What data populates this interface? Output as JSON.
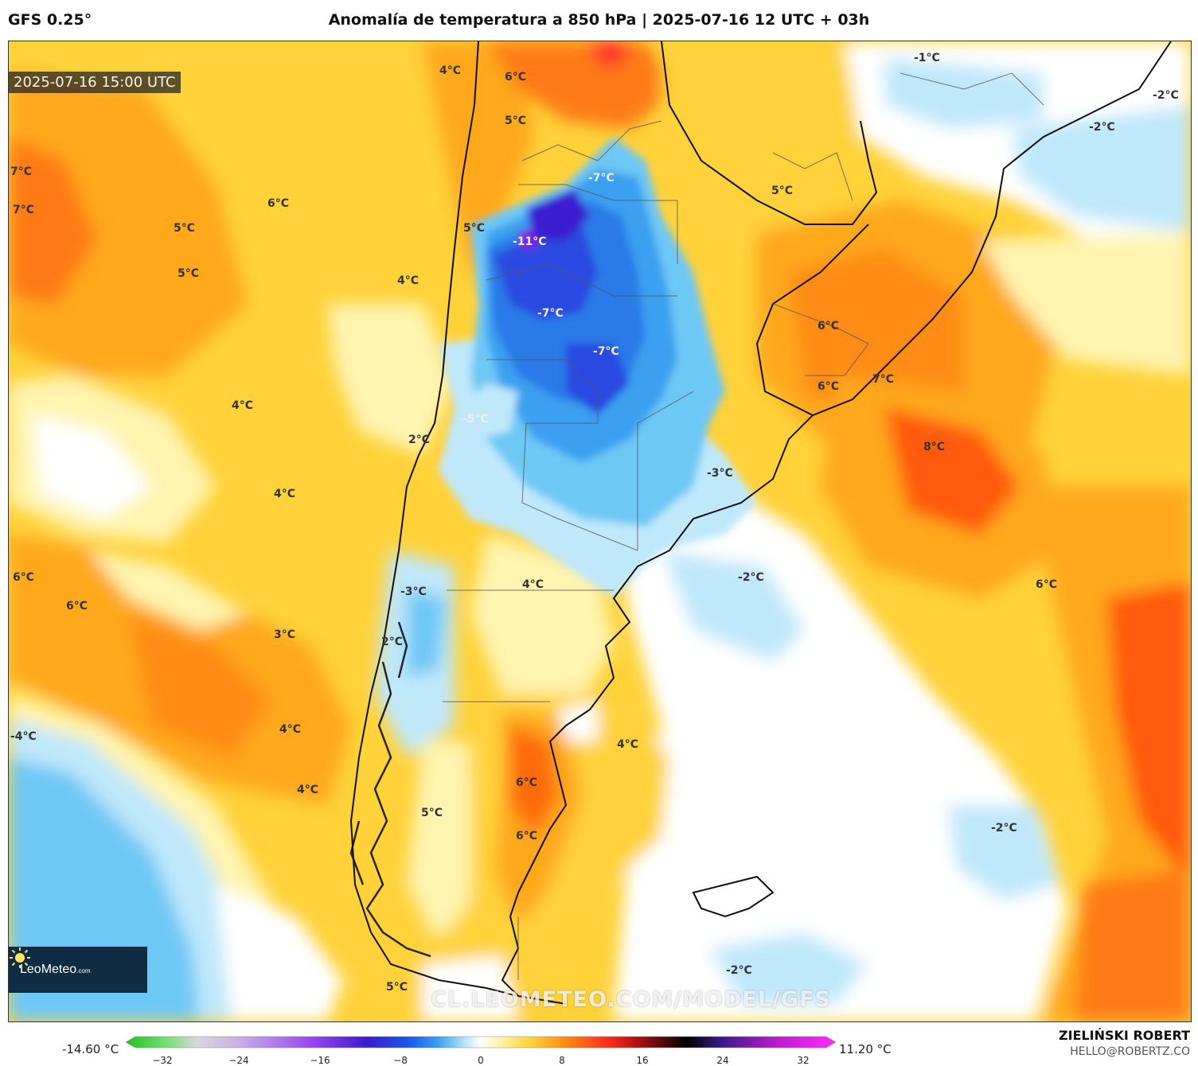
{
  "header": {
    "model": "GFS 0.25°",
    "title": "Anomalía de temperatura a 850 hPa | 2025-07-16 12 UTC + 03h"
  },
  "map": {
    "valid_time": "2025-07-16 15:00 UTC",
    "watermark": "CL.LEOMETEO.COM/MODEL/GFS",
    "logo": {
      "brand": "LeoMeteo",
      "suffix": ".com"
    },
    "labels": [
      {
        "text": "4°C"
      },
      {
        "text": "6°C"
      },
      {
        "text": "5°C"
      },
      {
        "text": "-1°C"
      },
      {
        "text": "-2°C"
      },
      {
        "text": "-2°C"
      },
      {
        "text": "7°C"
      },
      {
        "text": "7°C"
      },
      {
        "text": "-7°C"
      },
      {
        "text": "6°C"
      },
      {
        "text": "5°C"
      },
      {
        "text": "5°C"
      },
      {
        "text": "5°C"
      },
      {
        "text": "-11°C"
      },
      {
        "text": "5°C"
      },
      {
        "text": "4°C"
      },
      {
        "text": "-7°C"
      },
      {
        "text": "6°C"
      },
      {
        "text": "-7°C"
      },
      {
        "text": "7°C"
      },
      {
        "text": "6°C"
      },
      {
        "text": "4°C"
      },
      {
        "text": "-5°C"
      },
      {
        "text": "2°C"
      },
      {
        "text": "8°C"
      },
      {
        "text": "-3°C"
      },
      {
        "text": "4°C"
      },
      {
        "text": "6°C"
      },
      {
        "text": "6°C"
      },
      {
        "text": "4°C"
      },
      {
        "text": "-3°C"
      },
      {
        "text": "-2°C"
      },
      {
        "text": "6°C"
      },
      {
        "text": "3°C"
      },
      {
        "text": "2°C"
      },
      {
        "text": "-4°C"
      },
      {
        "text": "4°C"
      },
      {
        "text": "4°C"
      },
      {
        "text": "6°C"
      },
      {
        "text": "4°C"
      },
      {
        "text": "5°C"
      },
      {
        "text": "6°C"
      },
      {
        "text": "-2°C"
      },
      {
        "text": "-2°C"
      },
      {
        "text": "5°C"
      }
    ]
  },
  "colorbar": {
    "min_label": "-14.60 °C",
    "max_label": "11.20 °C",
    "ticks": [
      "−32",
      "−24",
      "−16",
      "−8",
      "0",
      "8",
      "16",
      "24",
      "32"
    ]
  },
  "credit": {
    "name": "ZIELIŃSKI ROBERT",
    "email": "HELLO@ROBERTZ.CO"
  },
  "colors": {
    "cold_deep": "#2a2ad8",
    "cold": "#3aa0f0",
    "cool": "#bfe8fb",
    "neutral": "#ffffff",
    "warm_light": "#fff4b0",
    "warm": "#ffd23a",
    "warmer": "#ffa81e",
    "hot": "#ff6a0a"
  }
}
